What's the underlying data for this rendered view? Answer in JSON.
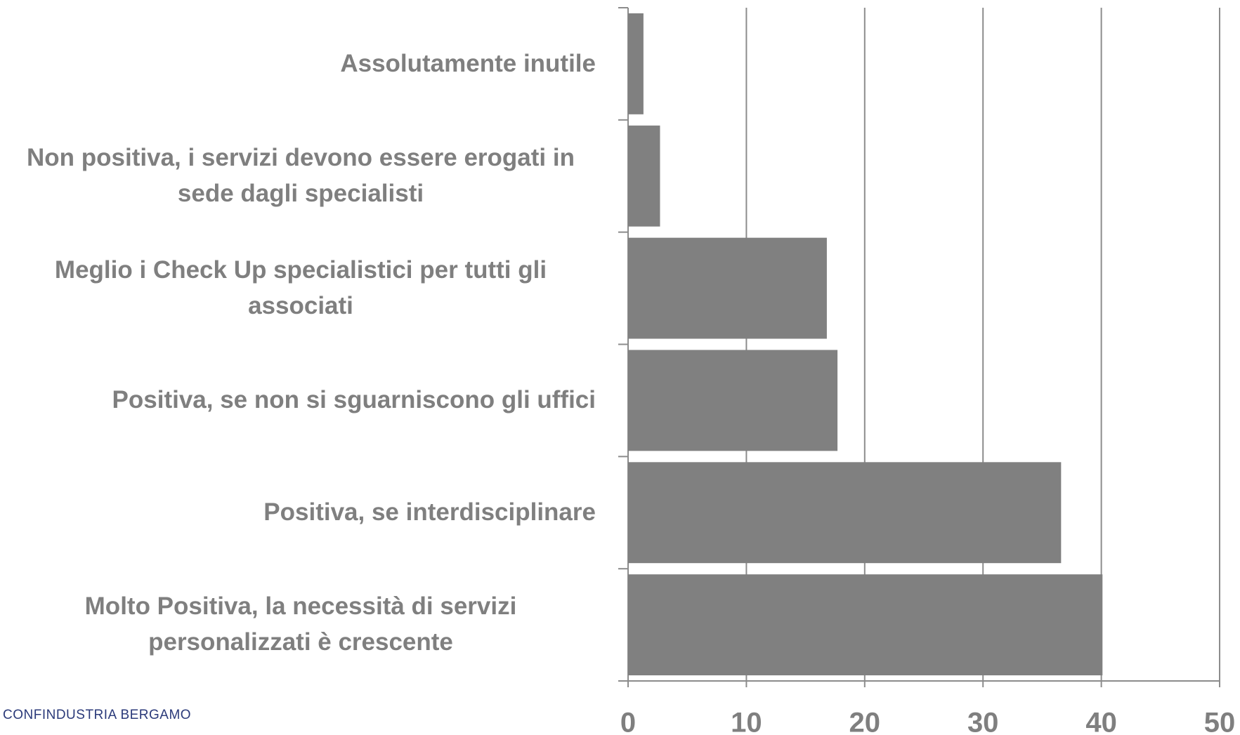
{
  "chart_data": {
    "type": "hbar",
    "categories": [
      "Assolutamente inutile",
      "Non positiva, i servizi devono essere erogati in sede dagli specialisti",
      "Meglio i Check Up specialistici per tutti gli associati",
      "Positiva, se non si sguarniscono gli uffici",
      "Positiva, se interdisciplinare",
      "Molto Positiva, la necessità di servizi personalizzati è crescente"
    ],
    "values": [
      1.3,
      2.7,
      16.8,
      17.7,
      36.6,
      40.1
    ],
    "color": "#808080",
    "xlim": [
      0,
      50
    ],
    "xticks": [
      0,
      10,
      20,
      30,
      40,
      50
    ],
    "grid": true
  },
  "logo": {
    "text": "CONFINDUSTRIA BERGAMO"
  }
}
